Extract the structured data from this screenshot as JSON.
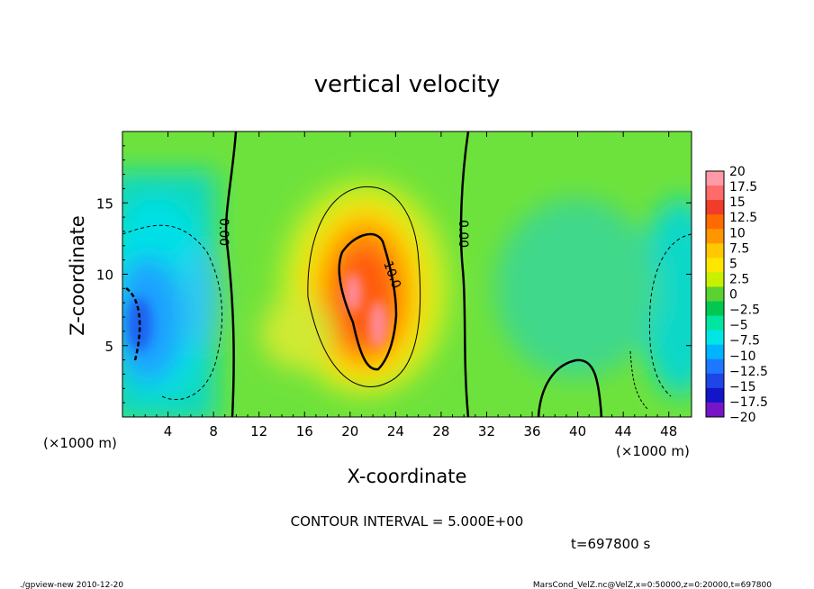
{
  "chart_data": {
    "type": "heatmap",
    "title": "vertical velocity",
    "xlabel": "X-coordinate",
    "ylabel": "Z-coordinate",
    "x_unit": "(×1000 m)",
    "z_unit": "(×1000 m)",
    "xlim": [
      0,
      50
    ],
    "ylim": [
      0,
      20
    ],
    "x_ticks": [
      "4",
      "8",
      "12",
      "16",
      "20",
      "24",
      "28",
      "32",
      "36",
      "40",
      "44",
      "48"
    ],
    "x_tick_values": [
      4,
      8,
      12,
      16,
      20,
      24,
      28,
      32,
      36,
      40,
      44,
      48
    ],
    "y_ticks": [
      "5",
      "10",
      "15"
    ],
    "y_tick_values": [
      5,
      10,
      15
    ],
    "colorbar": {
      "labels": [
        "20",
        "17.5",
        "15",
        "12.5",
        "10",
        "7.5",
        "5",
        "2.5",
        "0",
        "−2.5",
        "−5",
        "−7.5",
        "−10",
        "−12.5",
        "−15",
        "−17.5",
        "−20"
      ],
      "values": [
        20,
        17.5,
        15,
        12.5,
        10,
        7.5,
        5,
        2.5,
        0,
        -2.5,
        -5,
        -7.5,
        -10,
        -12.5,
        -15,
        -17.5,
        -20
      ],
      "colors": [
        "#ff9aa6",
        "#ff6a6a",
        "#f03c28",
        "#ff6a00",
        "#ff9600",
        "#ffc800",
        "#ffe600",
        "#c8f000",
        "#5ad232",
        "#00c850",
        "#00e6a0",
        "#00e6e6",
        "#00b4ff",
        "#1e78ff",
        "#1e46e6",
        "#1414c8",
        "#7814c8"
      ]
    },
    "contour_labels": [
      "0.00",
      "0.00",
      "10.0"
    ],
    "contour_interval_text": "CONTOUR INTERVAL = 5.000E+00",
    "time_text": "t=697800  s"
  },
  "footer": {
    "left": "./gpview-new  2010-12-20",
    "right": "MarsCond_VelZ.nc@VelZ,x=0:50000,z=0:20000,t=697800"
  }
}
